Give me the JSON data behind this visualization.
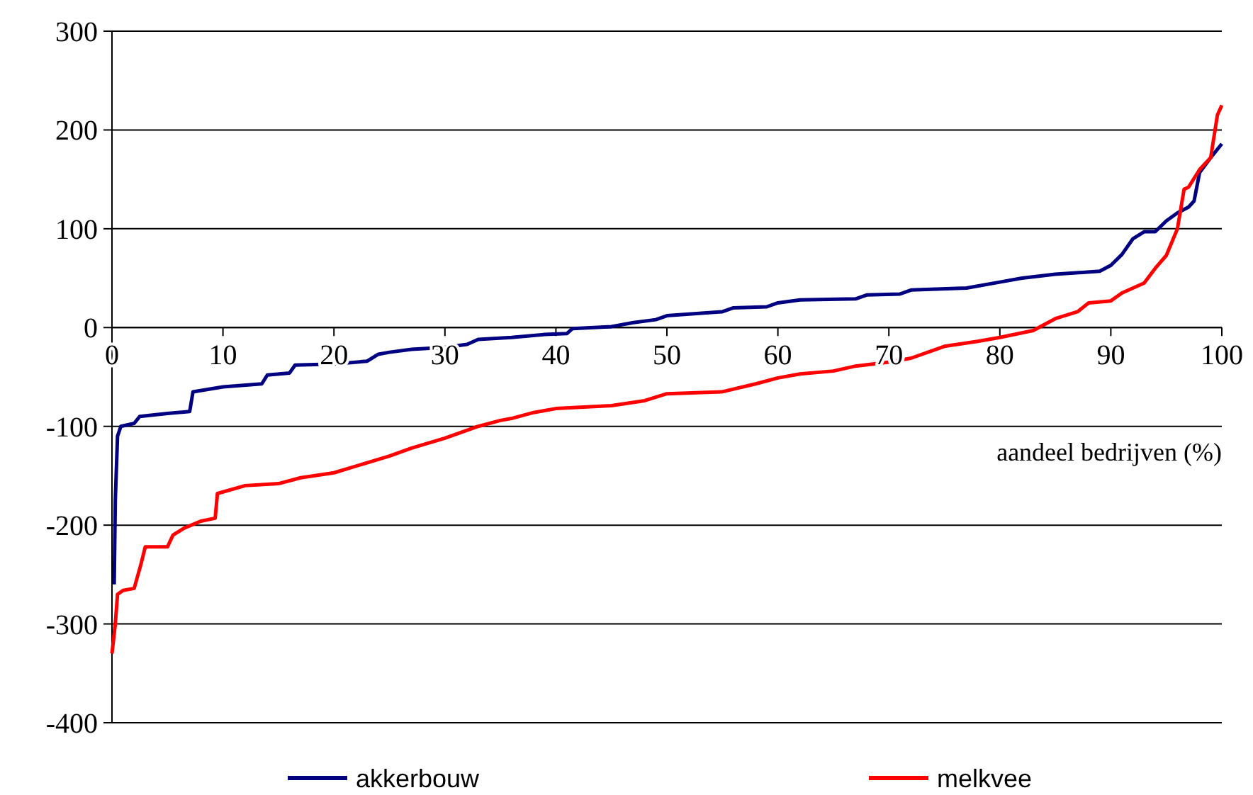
{
  "chart_data": {
    "type": "line",
    "xlabel": "aandeel bedrijven (%)",
    "xlim": [
      0,
      100
    ],
    "xticks": [
      0,
      10,
      20,
      30,
      40,
      50,
      60,
      70,
      80,
      90,
      100
    ],
    "ylim": [
      -400,
      300
    ],
    "yticks": [
      -400,
      -300,
      -200,
      -100,
      0,
      100,
      200,
      300
    ],
    "grid": "y",
    "legend": "bottom",
    "line_style": "solid",
    "series": [
      {
        "name": "akkerbouw",
        "color": "#000080",
        "x": [
          0.2,
          0.3,
          0.5,
          0.8,
          2,
          2.5,
          5,
          7,
          7.3,
          10,
          13.5,
          14,
          16,
          16.5,
          20,
          23,
          24,
          25,
          27,
          30,
          32,
          33,
          36,
          39,
          41,
          41.5,
          45,
          47,
          49,
          50,
          55,
          56,
          59,
          60,
          62,
          67,
          68,
          71,
          72,
          77,
          80,
          82,
          85,
          89,
          90,
          91,
          92,
          93,
          94,
          95,
          96,
          97,
          97.5,
          98,
          99,
          100
        ],
        "values": [
          -260,
          -175,
          -110,
          -100,
          -97,
          -90,
          -87,
          -85,
          -65,
          -60,
          -57,
          -48,
          -46,
          -38,
          -37,
          -34,
          -27,
          -25,
          -22,
          -20,
          -17,
          -12,
          -10,
          -7,
          -6,
          -1,
          1,
          5,
          8,
          12,
          16,
          20,
          21,
          25,
          28,
          29,
          33,
          34,
          38,
          40,
          46,
          50,
          54,
          57,
          63,
          74,
          90,
          97,
          97,
          108,
          116,
          122,
          128,
          157,
          172,
          186
        ]
      },
      {
        "name": "melkvee",
        "color": "#ff0000",
        "x": [
          0,
          0.3,
          0.5,
          1,
          2,
          2.6,
          3,
          5,
          5.5,
          6.5,
          8,
          9.3,
          9.5,
          12,
          15,
          17,
          20,
          25,
          27,
          30,
          33,
          35,
          36,
          38,
          40,
          45,
          48,
          50,
          55,
          58,
          60,
          62,
          65,
          67,
          70,
          72,
          75,
          78,
          80,
          83,
          85,
          87,
          88,
          90,
          91,
          93,
          94,
          95,
          96,
          96.6,
          97,
          98,
          99,
          99.6,
          100
        ],
        "values": [
          -330,
          -300,
          -270,
          -266,
          -264,
          -240,
          -222,
          -222,
          -210,
          -203,
          -196,
          -193,
          -168,
          -160,
          -158,
          -152,
          -147,
          -130,
          -122,
          -112,
          -100,
          -94,
          -92,
          -86,
          -82,
          -79,
          -74,
          -67,
          -65,
          -57,
          -51,
          -47,
          -44,
          -39,
          -35,
          -31,
          -19,
          -14,
          -10,
          -3,
          9,
          16,
          25,
          27,
          35,
          45,
          60,
          73,
          100,
          140,
          142,
          160,
          172,
          215,
          225
        ]
      }
    ]
  }
}
